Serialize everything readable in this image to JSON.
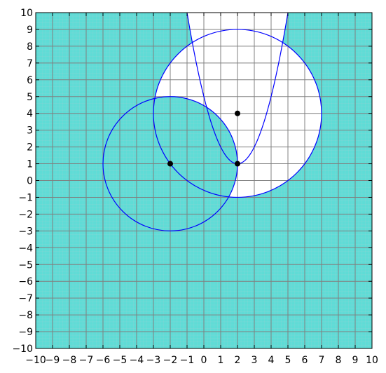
{
  "chart_data": {
    "type": "region-plot",
    "title": "",
    "xlabel": "",
    "ylabel": "",
    "xlim": [
      -10,
      10
    ],
    "ylim": [
      -10,
      10
    ],
    "x_ticks": [
      "−10",
      "−9",
      "−8",
      "−7",
      "−6",
      "−5",
      "−4",
      "−3",
      "−2",
      "−1",
      "0",
      "1",
      "2",
      "3",
      "4",
      "5",
      "6",
      "7",
      "8",
      "9",
      "10"
    ],
    "y_ticks": [
      "−10",
      "−9",
      "−8",
      "−7",
      "−6",
      "−5",
      "−4",
      "−3",
      "−2",
      "−1",
      "0",
      "1",
      "2",
      "3",
      "4",
      "5",
      "6",
      "7",
      "8",
      "9",
      "10"
    ],
    "grid": "major and minor",
    "colors": {
      "region_fill": "#5fdcd6",
      "curve": "#0000ff",
      "point": "#000000",
      "major_grid": "#808080",
      "minor_grid": "#a8c8cc"
    },
    "circles": [
      {
        "cx": -2,
        "cy": 1,
        "r": 4
      },
      {
        "cx": 2,
        "cy": 4,
        "r": 5
      }
    ],
    "parabola": {
      "vertex": [
        2,
        1
      ],
      "a": 1
    },
    "points": [
      {
        "x": -2,
        "y": 1
      },
      {
        "x": 2,
        "y": 1
      },
      {
        "x": 2,
        "y": 4
      }
    ],
    "unshaded_region": "y ≥ (x − 2)² + 1 or (x − 2)² + (y − 4)² ≤ 25, excluding the left circle"
  }
}
